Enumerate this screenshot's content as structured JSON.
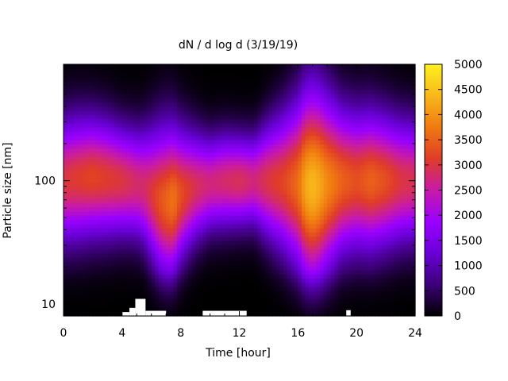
{
  "chart_data": {
    "type": "heatmap",
    "title": "dN / d log d (3/19/19)",
    "xlabel": "Time [hour]",
    "ylabel": "Particle size [nm]",
    "xlim": [
      0,
      24
    ],
    "ylim": [
      8,
      880
    ],
    "y_scale": "log",
    "x_ticks": [
      "0",
      "4",
      "8",
      "12",
      "16",
      "20",
      "24"
    ],
    "y_ticks": [
      "10",
      "100"
    ],
    "colorbar": {
      "range": [
        0,
        5000
      ],
      "ticks": [
        "0",
        "500",
        "1000",
        "1500",
        "2000",
        "2500",
        "3000",
        "3500",
        "4000",
        "4500",
        "5000"
      ],
      "palette": [
        "#000000",
        "#3c0078",
        "#6a00d8",
        "#9a00ff",
        "#c81aa8",
        "#e03c28",
        "#f07a10",
        "#f8b81a",
        "#fff020"
      ]
    },
    "grid": false,
    "legend": "colorbar-right",
    "profile": {
      "time_h": [
        0,
        1,
        2,
        3,
        4,
        4.5,
        5,
        5.5,
        6,
        6.5,
        7,
        7.5,
        8,
        9,
        10,
        11,
        12,
        13,
        14,
        15,
        16,
        16.5,
        17,
        17.5,
        18,
        19,
        20,
        21,
        22,
        23,
        24
      ],
      "peak_value": [
        3000,
        3100,
        3200,
        3100,
        3000,
        2900,
        2800,
        2800,
        3000,
        3300,
        3500,
        3700,
        3300,
        2900,
        2700,
        2800,
        2900,
        2700,
        3000,
        3200,
        3600,
        4200,
        4400,
        4200,
        3900,
        3500,
        3300,
        3500,
        3300,
        3000,
        2900
      ],
      "peak_size_nm": [
        100,
        105,
        108,
        105,
        100,
        98,
        95,
        90,
        80,
        72,
        68,
        70,
        78,
        90,
        95,
        100,
        100,
        100,
        100,
        98,
        95,
        92,
        90,
        92,
        95,
        100,
        100,
        100,
        100,
        100,
        100
      ],
      "width_dec": [
        0.34,
        0.34,
        0.33,
        0.32,
        0.3,
        0.3,
        0.3,
        0.32,
        0.36,
        0.4,
        0.42,
        0.41,
        0.36,
        0.3,
        0.26,
        0.26,
        0.25,
        0.25,
        0.32,
        0.38,
        0.46,
        0.52,
        0.54,
        0.52,
        0.48,
        0.4,
        0.38,
        0.38,
        0.36,
        0.34,
        0.33
      ]
    },
    "missing_data": [
      {
        "t_from": 4.0,
        "t_to": 4.5,
        "size_to_nm": 8.6
      },
      {
        "t_from": 4.5,
        "t_to": 4.9,
        "size_to_nm": 9.3
      },
      {
        "t_from": 4.9,
        "t_to": 5.6,
        "size_to_nm": 11.0
      },
      {
        "t_from": 5.6,
        "t_to": 7.0,
        "size_to_nm": 8.8
      },
      {
        "t_from": 9.5,
        "t_to": 12.5,
        "size_to_nm": 8.8
      },
      {
        "t_from": 19.3,
        "t_to": 19.6,
        "size_to_nm": 8.9
      }
    ]
  }
}
